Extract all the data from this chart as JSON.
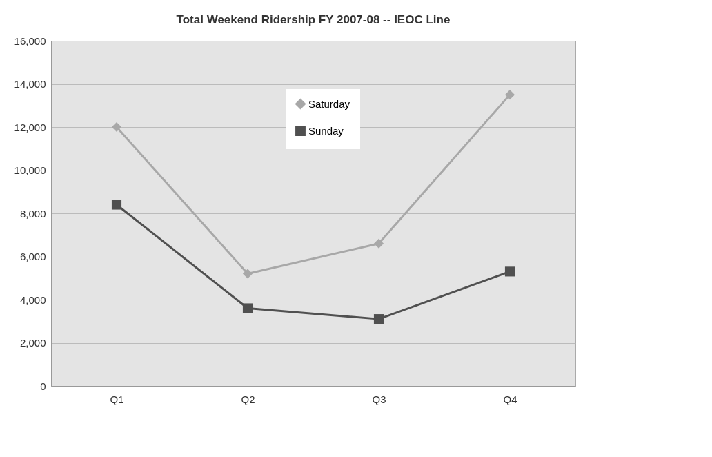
{
  "chart_data": {
    "type": "line",
    "title": "Total Weekend Ridership FY 2007-08 -- IEOC Line",
    "categories": [
      "Q1",
      "Q2",
      "Q3",
      "Q4"
    ],
    "series": [
      {
        "name": "Saturday",
        "color": "#a8a8a8",
        "marker": "diamond",
        "values": [
          12000,
          5200,
          6600,
          13500
        ]
      },
      {
        "name": "Sunday",
        "color": "#505050",
        "marker": "square",
        "values": [
          8400,
          3600,
          3100,
          5300
        ]
      }
    ],
    "ylim": [
      0,
      16000
    ],
    "yticks": [
      0,
      {
        "value": 2000,
        "label": "2,000"
      },
      {
        "value": 4000,
        "label": "4,000"
      },
      {
        "value": 6000,
        "label": "6,000"
      },
      {
        "value": 8000,
        "label": "8,000"
      },
      {
        "value": 10000,
        "label": "10,000"
      },
      {
        "value": 12000,
        "label": "12,000"
      },
      {
        "value": 14000,
        "label": "14,000"
      },
      {
        "value": 16000,
        "label": "16,000"
      }
    ],
    "grid": "y",
    "legend": "top"
  }
}
